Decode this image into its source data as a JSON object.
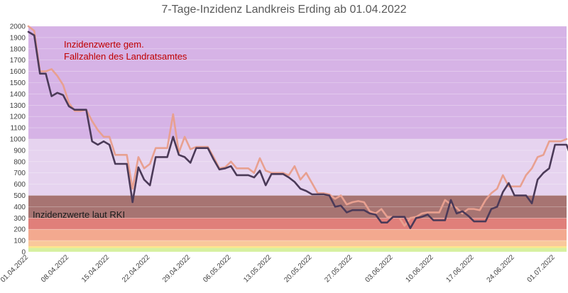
{
  "chart_data": {
    "type": "line",
    "title": "7-Tage-Inzidenz Landkreis Erding ab 01.04.2022",
    "xlabel": "",
    "ylabel": "",
    "ylim": [
      0,
      2000
    ],
    "yticks": [
      0,
      100,
      200,
      300,
      400,
      500,
      600,
      700,
      800,
      900,
      1000,
      1100,
      1200,
      1300,
      1400,
      1500,
      1600,
      1700,
      1800,
      1900,
      2000
    ],
    "xtick_labels": [
      "01.04.2022",
      "08.04.2022",
      "15.04.2022",
      "22.04.2022",
      "29.04.2022",
      "06.05.2022",
      "13.05.2022",
      "20.05.2022",
      "27.05.2022",
      "03.06.2022",
      "10.06.2022",
      "17.06.2022",
      "24.06.2022",
      "01.07.2022"
    ],
    "grid": true,
    "annotations": {
      "landratsamt": [
        "Inzidenzwerte gem.",
        "Fallzahlen des Landratsamtes"
      ],
      "rki": "Inzidenzwerte laut RKI"
    },
    "bands": [
      {
        "from": 0,
        "to": 35,
        "color": "#d6f0a0"
      },
      {
        "from": 35,
        "to": 50,
        "color": "#fde68a"
      },
      {
        "from": 50,
        "to": 100,
        "color": "#f9c89b"
      },
      {
        "from": 100,
        "to": 200,
        "color": "#f3a98f"
      },
      {
        "from": 200,
        "to": 300,
        "color": "#e07f7a"
      },
      {
        "from": 300,
        "to": 500,
        "color": "#a77472"
      },
      {
        "from": 500,
        "to": 1000,
        "color": "#e6d3ef"
      },
      {
        "from": 1000,
        "to": 2000,
        "color": "#d6b3e6"
      }
    ],
    "series": [
      {
        "color": "#e8a090",
        "values": [
          2000,
          1960,
          1600,
          1600,
          1620,
          1560,
          1480,
          1320,
          1250,
          1250,
          1260,
          1160,
          1080,
          1020,
          1020,
          860,
          860,
          860,
          560,
          840,
          740,
          780,
          920,
          920,
          920,
          1220,
          880,
          1020,
          910,
          930,
          930,
          930,
          840,
          740,
          750,
          800,
          740,
          740,
          740,
          700,
          830,
          720,
          700,
          700,
          700,
          680,
          760,
          640,
          700,
          610,
          520,
          520,
          510,
          470,
          500,
          420,
          440,
          450,
          440,
          360,
          340,
          380,
          310,
          310,
          310,
          230,
          300,
          310,
          340,
          350,
          350,
          350,
          460,
          420,
          390,
          340,
          380,
          380,
          370,
          460,
          520,
          560,
          680,
          580,
          580,
          580,
          680,
          740,
          840,
          860,
          980,
          980,
          980,
          1000
        ]
      },
      {
        "color": "#4b3a58",
        "values": [
          1950,
          1920,
          1580,
          1580,
          1380,
          1410,
          1390,
          1290,
          1260,
          1260,
          1260,
          980,
          950,
          980,
          950,
          780,
          780,
          780,
          440,
          750,
          640,
          590,
          840,
          840,
          840,
          1020,
          860,
          840,
          790,
          920,
          920,
          920,
          820,
          730,
          740,
          760,
          680,
          680,
          680,
          660,
          720,
          590,
          690,
          690,
          690,
          660,
          620,
          560,
          540,
          510,
          510,
          510,
          500,
          400,
          410,
          350,
          370,
          370,
          370,
          340,
          330,
          260,
          260,
          310,
          310,
          310,
          210,
          300,
          310,
          330,
          280,
          280,
          280,
          460,
          340,
          360,
          320,
          270,
          270,
          270,
          380,
          400,
          530,
          610,
          500,
          500,
          500,
          430,
          640,
          700,
          740,
          950,
          950,
          950,
          800
        ]
      }
    ]
  }
}
